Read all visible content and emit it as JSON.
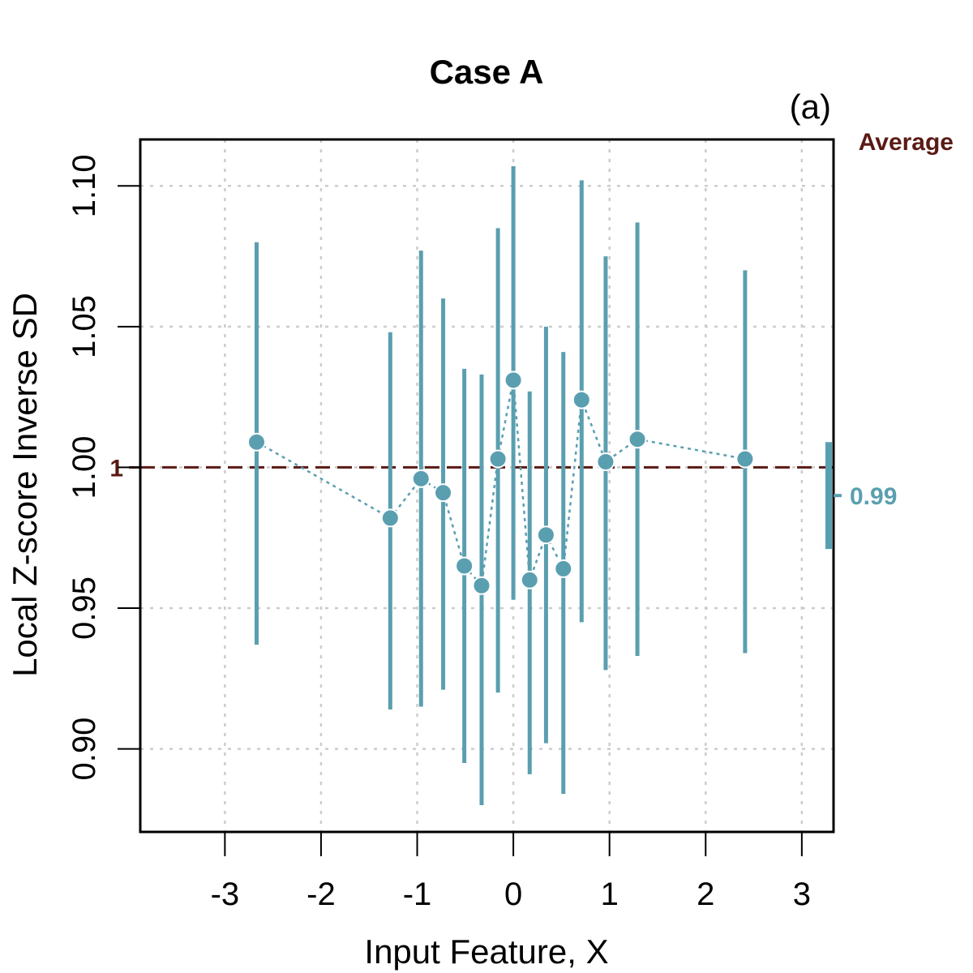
{
  "chart_data": {
    "type": "scatter",
    "title": "Case A",
    "panel_label": "(a)",
    "xlabel": "Input Feature, X",
    "ylabel": "Local Z-score Inverse SD",
    "xlim": [
      -3.88,
      3.33
    ],
    "ylim": [
      0.8705,
      1.1165
    ],
    "xticks": [
      -3,
      -2,
      -1,
      0,
      1,
      2,
      3
    ],
    "xtick_labels": [
      "-3",
      "-2",
      "-1",
      "0",
      "1",
      "2",
      "3"
    ],
    "yticks": [
      0.9,
      0.95,
      1.0,
      1.05,
      1.1
    ],
    "ytick_labels": [
      "0.90",
      "0.95",
      "1.00",
      "1.05",
      "1.10"
    ],
    "grid": true,
    "reference_line": {
      "value": 1.0,
      "label": "1"
    },
    "average": {
      "label": "Average",
      "value_label": "0.99",
      "value": 0.99,
      "low": 0.971,
      "high": 1.009
    },
    "series": [
      {
        "name": "Local Z-score Inverse SD",
        "color": "#5a9fb0",
        "x": [
          -2.67,
          -1.28,
          -0.96,
          -0.73,
          -0.51,
          -0.33,
          -0.16,
          0.0,
          0.17,
          0.34,
          0.52,
          0.71,
          0.96,
          1.29,
          2.41
        ],
        "y": [
          1.009,
          0.982,
          0.996,
          0.991,
          0.965,
          0.958,
          1.003,
          1.031,
          0.96,
          0.976,
          0.964,
          1.024,
          1.002,
          1.01,
          1.003
        ],
        "low": [
          0.937,
          0.914,
          0.915,
          0.921,
          0.895,
          0.88,
          0.92,
          0.953,
          0.891,
          0.902,
          0.884,
          0.945,
          0.928,
          0.933,
          0.934
        ],
        "high": [
          1.08,
          1.048,
          1.077,
          1.06,
          1.035,
          1.033,
          1.085,
          1.107,
          1.027,
          1.05,
          1.041,
          1.102,
          1.075,
          1.087,
          1.07
        ]
      }
    ],
    "colors": {
      "series": "#5a9fb0",
      "reference": "#5a1a14",
      "grid": "#cccccc"
    }
  }
}
